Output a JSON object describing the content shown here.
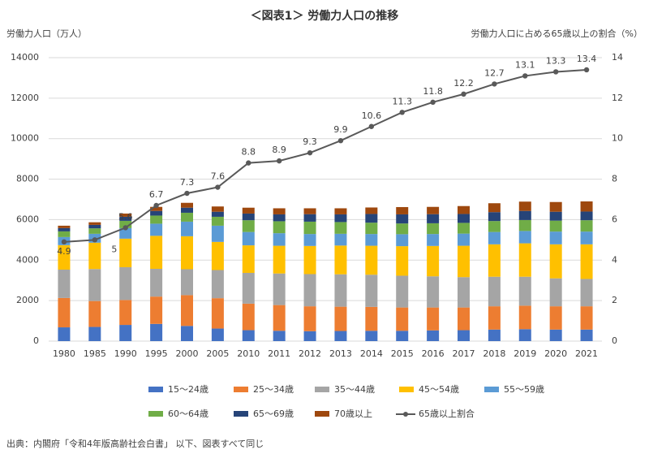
{
  "chart_data": {
    "type": "bar",
    "stacked": true,
    "title": "＜図表1＞ 労働力人口の推移",
    "y_label": "労働力人口（万人）",
    "y2_label": "労働力人口に占める65歳以上の割合（%）",
    "source": "出典：内閣府「令和4年版高齢社会白書」 以下、図表すべて同じ",
    "categories": [
      "1980",
      "1985",
      "1990",
      "1995",
      "2000",
      "2005",
      "2010",
      "2011",
      "2012",
      "2013",
      "2014",
      "2015",
      "2016",
      "2017",
      "2018",
      "2019",
      "2020",
      "2021"
    ],
    "ylim": [
      0,
      14000
    ],
    "yticks": [
      0,
      2000,
      4000,
      6000,
      8000,
      10000,
      12000,
      14000
    ],
    "y2lim": [
      0,
      14
    ],
    "y2ticks": [
      0,
      2,
      4,
      6,
      8,
      10,
      12,
      14
    ],
    "series": [
      {
        "name": "15～24歳",
        "color": "#4472c4",
        "values": [
          680,
          700,
          800,
          850,
          750,
          620,
          540,
          510,
          490,
          500,
          510,
          510,
          530,
          540,
          570,
          590,
          570,
          570
        ]
      },
      {
        "name": "25～34歳",
        "color": "#ed7d31",
        "values": [
          1450,
          1280,
          1230,
          1350,
          1520,
          1500,
          1310,
          1270,
          1230,
          1200,
          1180,
          1150,
          1130,
          1120,
          1150,
          1160,
          1150,
          1150
        ]
      },
      {
        "name": "35～44歳",
        "color": "#a5a5a5",
        "values": [
          1400,
          1580,
          1620,
          1370,
          1280,
          1390,
          1520,
          1560,
          1590,
          1600,
          1590,
          1570,
          1540,
          1500,
          1460,
          1430,
          1380,
          1350
        ]
      },
      {
        "name": "45～54歳",
        "color": "#ffc000",
        "values": [
          1210,
          1300,
          1410,
          1630,
          1630,
          1390,
          1360,
          1370,
          1390,
          1420,
          1430,
          1460,
          1500,
          1550,
          1600,
          1650,
          1680,
          1710
        ]
      },
      {
        "name": "55～59歳",
        "color": "#5b9bd5",
        "values": [
          400,
          440,
          520,
          600,
          720,
          800,
          660,
          620,
          590,
          580,
          580,
          590,
          590,
          600,
          610,
          610,
          630,
          630
        ]
      },
      {
        "name": "60～64歳",
        "color": "#70ad47",
        "values": [
          280,
          270,
          360,
          400,
          440,
          440,
          580,
          590,
          610,
          580,
          560,
          530,
          530,
          530,
          540,
          540,
          540,
          560
        ]
      },
      {
        "name": "65～69歳",
        "color": "#264478",
        "values": [
          160,
          170,
          200,
          230,
          250,
          250,
          330,
          340,
          370,
          380,
          430,
          450,
          450,
          440,
          440,
          450,
          440,
          430
        ]
      },
      {
        "name": "70歳以上",
        "color": "#9e480e",
        "values": [
          120,
          130,
          160,
          200,
          240,
          260,
          290,
          300,
          290,
          300,
          320,
          360,
          360,
          390,
          440,
          460,
          480,
          500
        ]
      },
      {
        "name": "65歳以上割合",
        "color": "#595959",
        "axis": "y2",
        "values": [
          4.9,
          5,
          5.6,
          6.7,
          7.3,
          7.6,
          8.8,
          8.9,
          9.3,
          9.9,
          10.6,
          11.3,
          11.8,
          12.2,
          12.7,
          13.1,
          13.3,
          13.4
        ]
      }
    ]
  }
}
